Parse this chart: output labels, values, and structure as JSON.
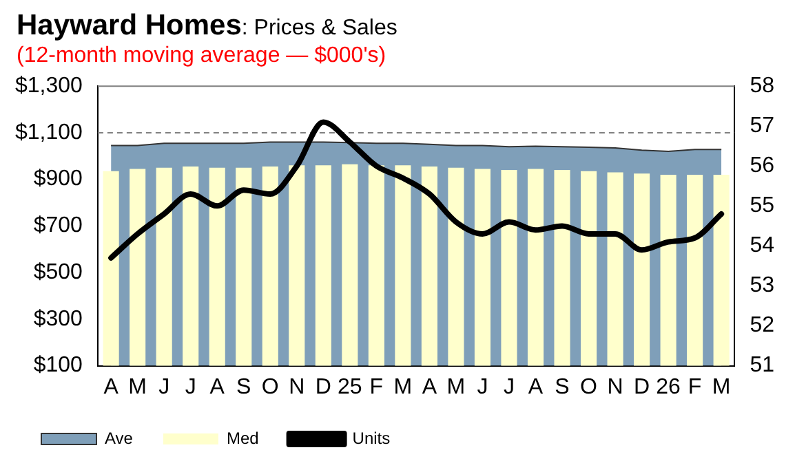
{
  "chart_data": {
    "type": "bar",
    "title": "Hayward Homes: Prices & Sales",
    "subtitle": "(12-month moving average — $000's)",
    "categories": [
      "A",
      "M",
      "J",
      "J",
      "A",
      "S",
      "O",
      "N",
      "D",
      "25",
      "F",
      "M",
      "A",
      "M",
      "J",
      "J",
      "A",
      "S",
      "O",
      "N",
      "D",
      "26",
      "F",
      "M"
    ],
    "series": [
      {
        "name": "Ave",
        "type": "area",
        "color": "#7f9fb9",
        "values": [
          1045,
          1045,
          1055,
          1055,
          1055,
          1055,
          1060,
          1060,
          1060,
          1058,
          1055,
          1055,
          1050,
          1045,
          1045,
          1040,
          1042,
          1040,
          1038,
          1035,
          1025,
          1020,
          1028,
          1028
        ]
      },
      {
        "name": "Med",
        "color": "#ffffcc",
        "values": [
          935,
          945,
          950,
          955,
          950,
          950,
          955,
          960,
          960,
          965,
          960,
          960,
          955,
          950,
          945,
          940,
          945,
          940,
          935,
          930,
          925,
          920,
          920,
          920
        ]
      },
      {
        "name": "Units",
        "type": "line",
        "axis": "y2",
        "color": "#000000",
        "values": [
          53.7,
          54.3,
          54.8,
          55.3,
          55.0,
          55.4,
          55.3,
          56.0,
          57.1,
          56.6,
          56.0,
          55.7,
          55.3,
          54.6,
          54.3,
          54.6,
          54.4,
          54.5,
          54.3,
          54.3,
          53.9,
          54.1,
          54.2,
          54.8
        ]
      }
    ],
    "ylim": [
      100,
      1300
    ],
    "yticks": [
      {
        "value": 100,
        "label": "$100"
      },
      {
        "value": 300,
        "label": "$300"
      },
      {
        "value": 500,
        "label": "$500"
      },
      {
        "value": 700,
        "label": "$700"
      },
      {
        "value": 900,
        "label": "$900"
      },
      {
        "value": 1100,
        "label": "$1,100"
      },
      {
        "value": 1300,
        "label": "$1,300"
      }
    ],
    "y2lim": [
      51,
      58
    ],
    "y2ticks": [
      51,
      52,
      53,
      54,
      55,
      56,
      57,
      58
    ],
    "ref_lines": [
      {
        "axis": "y",
        "value": 1100,
        "color": "#808080",
        "line_style": "dashed"
      }
    ],
    "legend": "bottom left",
    "grid": false,
    "marker": "none"
  }
}
